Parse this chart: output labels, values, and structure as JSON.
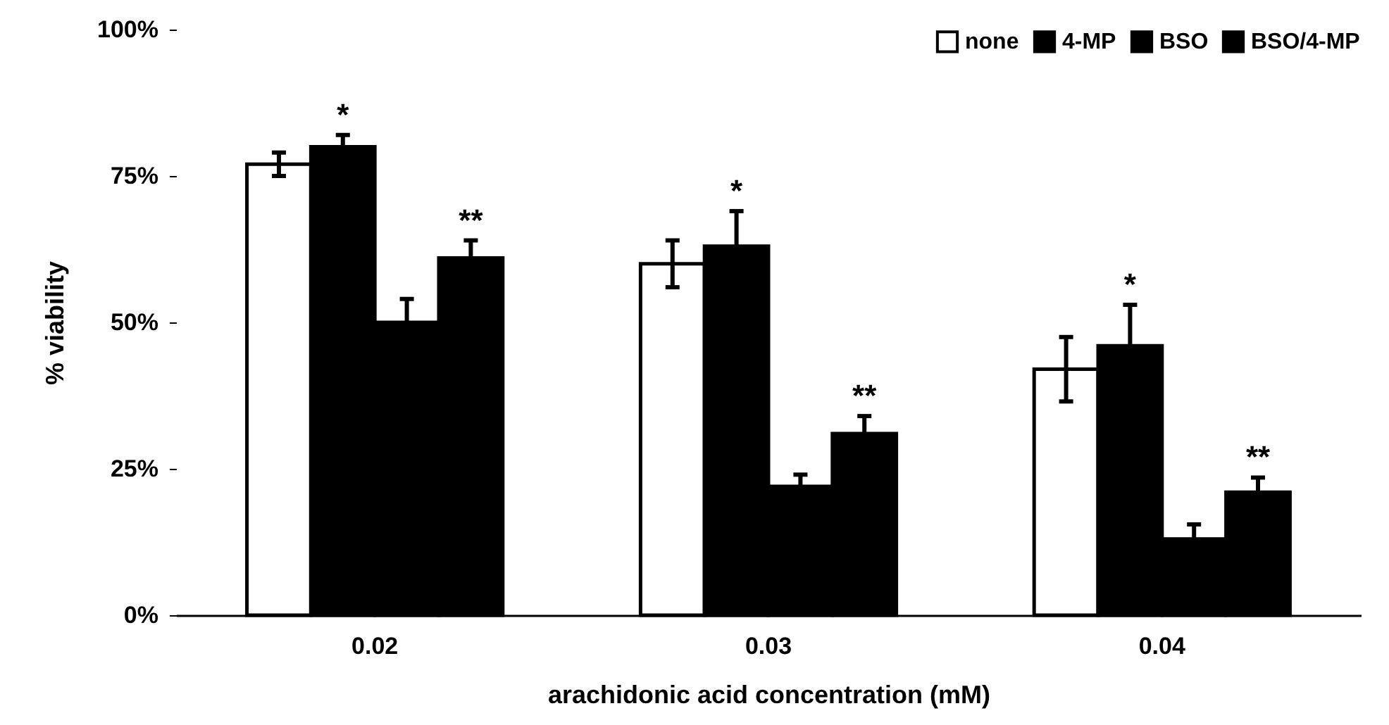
{
  "chart_data": {
    "type": "bar",
    "xlabel": "arachidonic acid concentration (mM)",
    "ylabel": "% viability",
    "categories": [
      "0.02",
      "0.03",
      "0.04"
    ],
    "series": [
      {
        "name": "none",
        "color": "#ffffff",
        "values": [
          77,
          60,
          42
        ],
        "errors": [
          2,
          4,
          5.5
        ]
      },
      {
        "name": "4-MP",
        "color": "#000000",
        "values": [
          80,
          63,
          46
        ],
        "errors": [
          2,
          6,
          7
        ]
      },
      {
        "name": "BSO",
        "color": "#000000",
        "values": [
          50,
          22,
          13
        ],
        "errors": [
          4,
          2,
          2.5
        ]
      },
      {
        "name": "BSO/4-MP",
        "color": "#000000",
        "values": [
          61,
          31,
          21
        ],
        "errors": [
          3,
          3,
          2.5
        ]
      }
    ],
    "ylim": [
      0,
      100
    ],
    "yticks": [
      {
        "value": 0,
        "label": "0%"
      },
      {
        "value": 25,
        "label": "25%"
      },
      {
        "value": 50,
        "label": "50%"
      },
      {
        "value": 75,
        "label": "75%"
      },
      {
        "value": 100,
        "label": "100%"
      }
    ],
    "annotations": [
      {
        "text": "*",
        "x": "0.02",
        "y": 80
      },
      {
        "text": "**",
        "x": "0.02",
        "y": 61
      },
      {
        "text": "*",
        "x": "0.03",
        "y": 63
      },
      {
        "text": "**",
        "x": "0.03",
        "y": 31
      },
      {
        "text": "*",
        "x": "0.04",
        "y": 46
      },
      {
        "text": "**",
        "x": "0.04",
        "y": 21
      }
    ],
    "legend": "top right",
    "grid": false
  }
}
